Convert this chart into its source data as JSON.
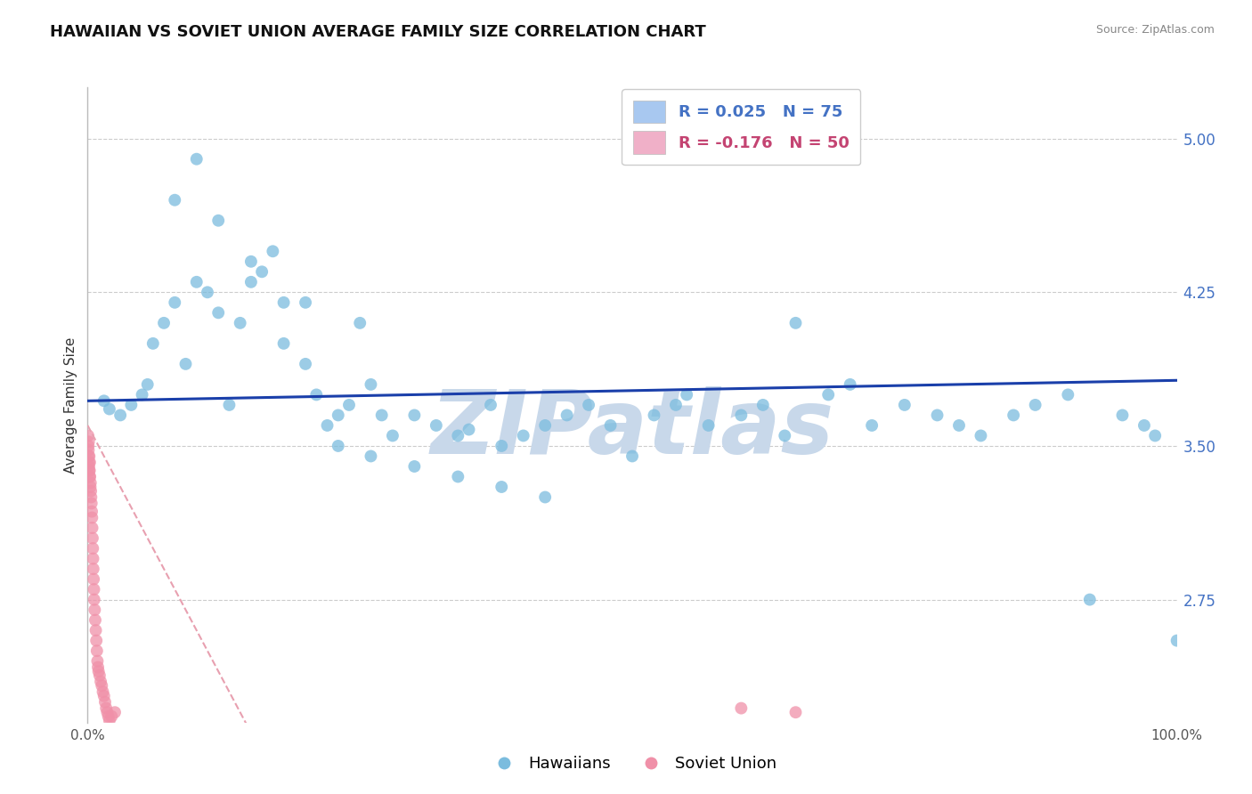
{
  "title": "HAWAIIAN VS SOVIET UNION AVERAGE FAMILY SIZE CORRELATION CHART",
  "source_text": "Source: ZipAtlas.com",
  "ylabel": "Average Family Size",
  "x_tick_labels": [
    "0.0%",
    "100.0%"
  ],
  "y_tick_values": [
    2.75,
    3.5,
    4.25,
    5.0
  ],
  "y_tick_labels": [
    "2.75",
    "3.50",
    "4.25",
    "5.00"
  ],
  "xlim": [
    0.0,
    100.0
  ],
  "ylim": [
    2.15,
    5.25
  ],
  "watermark": "ZIPatlas",
  "watermark_color": "#c8d8ea",
  "background_color": "#ffffff",
  "grid_color": "#cccccc",
  "hawaiians_color": "#7bbcde",
  "soviet_color": "#f090a8",
  "trend_blue_color": "#1a3faa",
  "trend_pink_color": "#e8a0b0",
  "title_color": "#111111",
  "source_color": "#888888",
  "ylabel_color": "#333333",
  "right_tick_color": "#4472c4",
  "legend1_blue_text": "R = 0.025   N = 75",
  "legend1_pink_text": "R = -0.176   N = 50",
  "legend1_blue_color": "#4472c4",
  "legend1_pink_color": "#c44472",
  "legend1_blue_patch": "#a8c8f0",
  "legend1_pink_patch": "#f0b0c8",
  "hawaiians_x": [
    1.5,
    2.0,
    3.0,
    4.0,
    5.0,
    5.5,
    6.0,
    7.0,
    8.0,
    9.0,
    10.0,
    11.0,
    12.0,
    13.0,
    14.0,
    15.0,
    16.0,
    17.0,
    18.0,
    20.0,
    21.0,
    22.0,
    23.0,
    24.0,
    25.0,
    26.0,
    27.0,
    28.0,
    30.0,
    32.0,
    34.0,
    35.0,
    37.0,
    38.0,
    40.0,
    42.0,
    44.0,
    46.0,
    48.0,
    50.0,
    52.0,
    54.0,
    55.0,
    57.0,
    60.0,
    62.0,
    64.0,
    65.0,
    68.0,
    70.0,
    72.0,
    75.0,
    78.0,
    80.0,
    82.0,
    85.0,
    87.0,
    90.0,
    92.0,
    95.0,
    97.0,
    98.0,
    100.0,
    8.0,
    10.0,
    12.0,
    15.0,
    18.0,
    20.0,
    23.0,
    26.0,
    30.0,
    34.0,
    38.0,
    42.0
  ],
  "hawaiians_y": [
    3.72,
    3.68,
    3.65,
    3.7,
    3.75,
    3.8,
    4.0,
    4.1,
    4.2,
    3.9,
    4.3,
    4.25,
    4.15,
    3.7,
    4.1,
    4.3,
    4.35,
    4.45,
    4.0,
    4.2,
    3.75,
    3.6,
    3.65,
    3.7,
    4.1,
    3.8,
    3.65,
    3.55,
    3.65,
    3.6,
    3.55,
    3.58,
    3.7,
    3.5,
    3.55,
    3.6,
    3.65,
    3.7,
    3.6,
    3.45,
    3.65,
    3.7,
    3.75,
    3.6,
    3.65,
    3.7,
    3.55,
    4.1,
    3.75,
    3.8,
    3.6,
    3.7,
    3.65,
    3.6,
    3.55,
    3.65,
    3.7,
    3.75,
    2.75,
    3.65,
    3.6,
    3.55,
    2.55,
    4.7,
    4.9,
    4.6,
    4.4,
    4.2,
    3.9,
    3.5,
    3.45,
    3.4,
    3.35,
    3.3,
    3.25
  ],
  "soviet_x": [
    0.05,
    0.07,
    0.08,
    0.09,
    0.1,
    0.12,
    0.13,
    0.14,
    0.15,
    0.17,
    0.18,
    0.2,
    0.22,
    0.25,
    0.27,
    0.3,
    0.32,
    0.35,
    0.38,
    0.4,
    0.42,
    0.45,
    0.48,
    0.5,
    0.52,
    0.55,
    0.58,
    0.6,
    0.65,
    0.7,
    0.75,
    0.8,
    0.85,
    0.9,
    0.95,
    1.0,
    1.1,
    1.2,
    1.3,
    1.4,
    1.5,
    1.6,
    1.7,
    1.8,
    1.9,
    2.0,
    2.2,
    2.5,
    60.0,
    65.0
  ],
  "soviet_y": [
    3.55,
    3.5,
    3.48,
    3.45,
    3.52,
    3.4,
    3.42,
    3.38,
    3.45,
    3.35,
    3.38,
    3.42,
    3.35,
    3.3,
    3.32,
    3.28,
    3.25,
    3.22,
    3.18,
    3.15,
    3.1,
    3.05,
    3.0,
    2.95,
    2.9,
    2.85,
    2.8,
    2.75,
    2.7,
    2.65,
    2.6,
    2.55,
    2.5,
    2.45,
    2.42,
    2.4,
    2.38,
    2.35,
    2.33,
    2.3,
    2.28,
    2.25,
    2.22,
    2.2,
    2.18,
    2.16,
    2.18,
    2.2,
    2.22,
    2.2
  ]
}
